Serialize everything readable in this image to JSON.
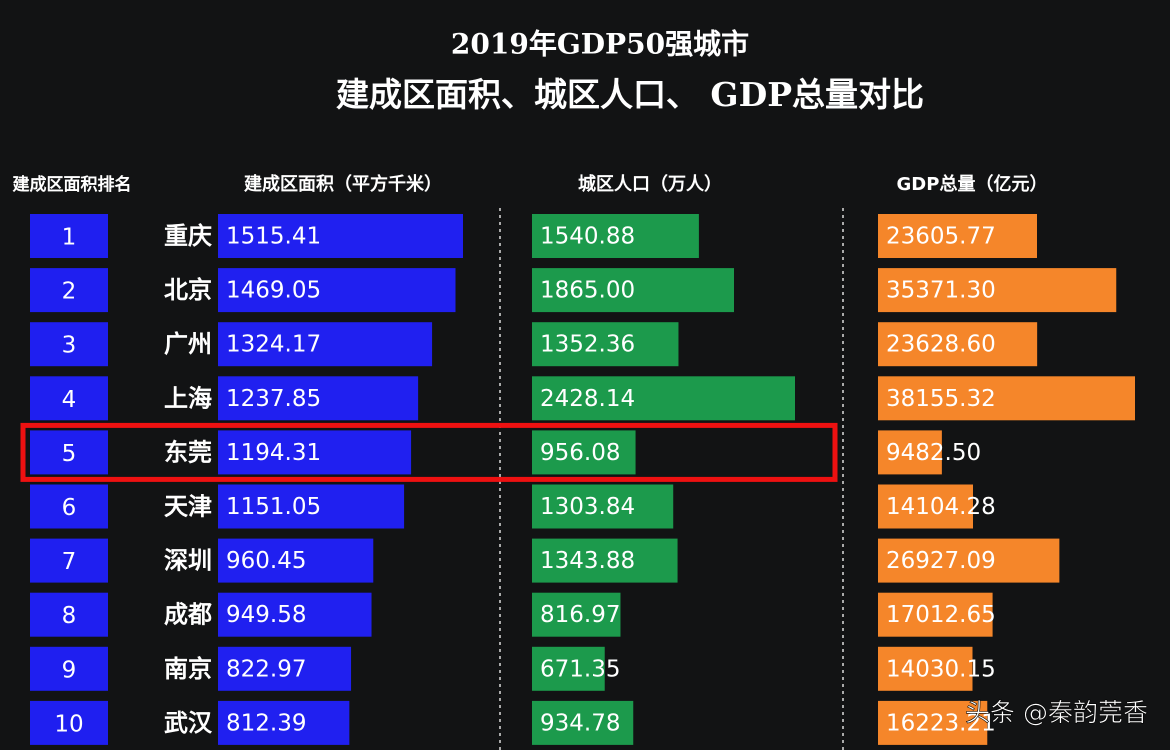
{
  "chart_data": {
    "type": "bar",
    "title": "2019年GDP50强城市",
    "subtitle": "建成区面积、城区人口、 GDP总量对比",
    "rank_label": "建成区面积排名",
    "ranks": [
      1,
      2,
      3,
      4,
      5,
      6,
      7,
      8,
      9,
      10
    ],
    "categories": [
      "重庆",
      "北京",
      "广州",
      "上海",
      "东莞",
      "天津",
      "深圳",
      "成都",
      "南京",
      "武汉"
    ],
    "highlight": 4,
    "series": [
      {
        "name": "建成区面积（平方千米）",
        "color": "#2020f0",
        "values": [
          1515.41,
          1469.05,
          1324.17,
          1237.85,
          1194.31,
          1151.05,
          960.45,
          949.58,
          822.97,
          812.39
        ],
        "value_labels": [
          "1515.41",
          "1469.05",
          "1324.17",
          "1237.85",
          "1194.31",
          "1151.05",
          "960.45",
          "949.58",
          "822.97",
          "812.39"
        ]
      },
      {
        "name": "城区人口（万人）",
        "color": "#1c9a4c",
        "values": [
          1540.88,
          1865.0,
          1352.36,
          2428.14,
          956.08,
          1303.84,
          1343.88,
          816.97,
          671.35,
          934.78
        ],
        "value_labels": [
          "1540.88",
          "1865.00",
          "1352.36",
          "2428.14",
          "956.08",
          "1303.84",
          "1343.88",
          "816.97",
          "671.35",
          "934.78"
        ]
      },
      {
        "name": "GDP总量（亿元）",
        "color": "#f5862a",
        "values": [
          23605.77,
          35371.3,
          23628.6,
          38155.32,
          9482.5,
          14104.28,
          26927.09,
          17012.65,
          14030.15,
          16223.21
        ],
        "value_labels": [
          "23605.77",
          "35371.30",
          "23628.60",
          "38155.32",
          "9482.50",
          "14104.28",
          "26927.09",
          "17012.65",
          "14030.15",
          "16223.21"
        ]
      }
    ],
    "watermark": "头条 @秦韵莞香"
  }
}
